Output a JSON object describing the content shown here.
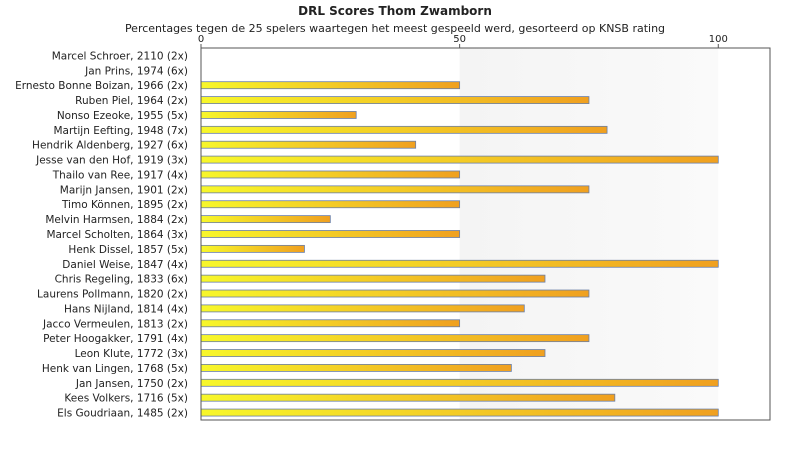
{
  "chart_data": {
    "type": "bar",
    "orientation": "horizontal",
    "title": "DRL Scores Thom Zwamborn",
    "subtitle": "Percentages tegen de 25 spelers waartegen het meest gespeeld werd, gesorteerd op KNSB rating",
    "xlabel": "",
    "ylabel": "",
    "xlim": [
      0,
      110
    ],
    "xticks": [
      "0",
      "50",
      "100"
    ],
    "tick_values": [
      0,
      50,
      100
    ],
    "grid": "vertical bands",
    "legend": "none",
    "colors": {
      "bar_start": "#f7f72a",
      "bar_end": "#f0a020",
      "bar_border": "#6a7fa8",
      "band": "#f2f2f2"
    },
    "categories": [
      "Marcel Schroer, 2110 (2x)",
      "Jan Prins, 1974 (6x)",
      "Ernesto Bonne Boizan, 1966 (2x)",
      "Ruben Piel, 1964 (2x)",
      "Nonso Ezeoke, 1955 (5x)",
      "Martijn Eefting, 1948 (7x)",
      "Hendrik Aldenberg, 1927 (6x)",
      "Jesse van den Hof, 1919 (3x)",
      "Thailo van Ree, 1917 (4x)",
      "Marijn Jansen, 1901 (2x)",
      "Timo Können, 1895 (2x)",
      "Melvin Harmsen, 1884 (2x)",
      "Marcel Scholten, 1864 (3x)",
      "Henk Dissel, 1857 (5x)",
      "Daniel Weise, 1847 (4x)",
      "Chris Regeling, 1833 (6x)",
      "Laurens Pollmann, 1820 (2x)",
      "Hans Nijland, 1814 (4x)",
      "Jacco Vermeulen, 1813 (2x)",
      "Peter Hoogakker, 1791 (4x)",
      "Leon Klute, 1772 (3x)",
      "Henk van Lingen, 1768 (5x)",
      "Jan Jansen, 1750 (2x)",
      "Kees Volkers, 1716 (5x)",
      "Els Goudriaan, 1485 (2x)"
    ],
    "values": [
      0,
      0,
      50,
      75,
      30,
      78.5,
      41.5,
      100,
      50,
      75,
      50,
      25,
      50,
      20,
      100,
      66.5,
      75,
      62.5,
      50,
      75,
      66.5,
      60,
      100,
      80,
      100
    ]
  }
}
